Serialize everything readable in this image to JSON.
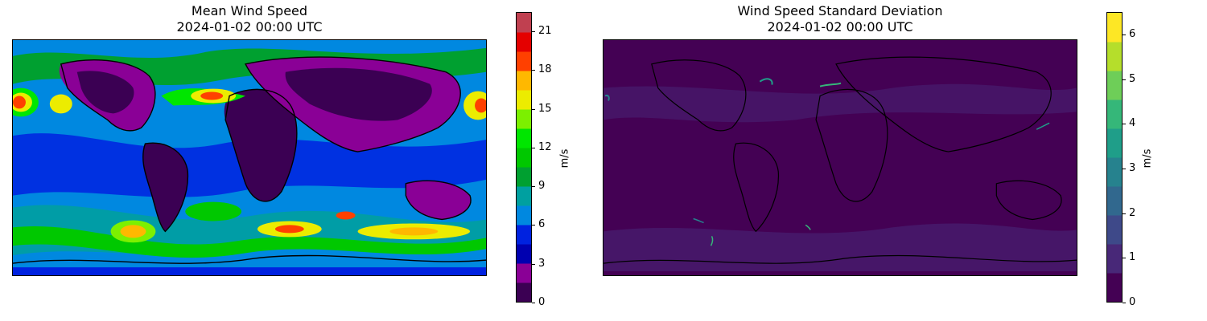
{
  "panels": [
    {
      "title": "Mean Wind Speed",
      "subtitle": "2024-01-02 00:00 UTC",
      "colorbar": {
        "label": "m/s",
        "ticks": [
          "0",
          "3",
          "6",
          "9",
          "12",
          "15",
          "18",
          "21"
        ],
        "range": [
          0,
          22.5
        ],
        "colors": [
          "#3b0053",
          "#8a0096",
          "#0000b0",
          "#0022e0",
          "#0088e0",
          "#00a0a0",
          "#00a030",
          "#00c800",
          "#00e600",
          "#7cf000",
          "#ecec00",
          "#ffb800",
          "#ff4000",
          "#e40000",
          "#c04050"
        ]
      }
    },
    {
      "title": "Wind Speed Standard Deviation",
      "subtitle": "2024-01-02 00:00 UTC",
      "colorbar": {
        "label": "m/s",
        "ticks": [
          "0",
          "1",
          "2",
          "3",
          "4",
          "5",
          "6"
        ],
        "range": [
          0,
          6.5
        ],
        "colors": [
          "#440154",
          "#482878",
          "#3e4989",
          "#31688e",
          "#26828e",
          "#1f9e89",
          "#35b779",
          "#6ece58",
          "#b5de2b",
          "#fde725"
        ]
      }
    }
  ]
}
